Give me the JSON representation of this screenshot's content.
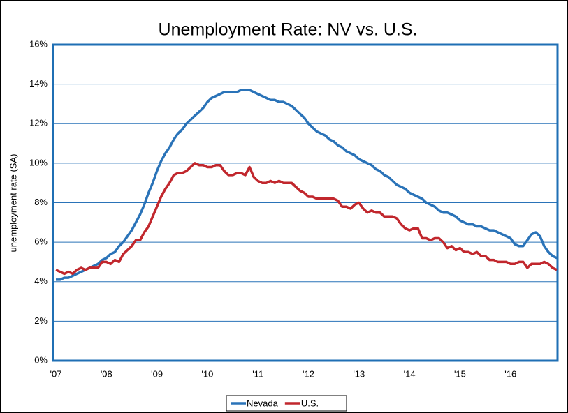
{
  "chart_data": {
    "type": "line",
    "title": "Unemployment Rate: NV vs. U.S.",
    "y_label": "unemployment rate (SA)",
    "categories": [
      "'07",
      null,
      null,
      null,
      null,
      null,
      null,
      null,
      null,
      null,
      null,
      null,
      "'08",
      null,
      null,
      null,
      null,
      null,
      null,
      null,
      null,
      null,
      null,
      null,
      "'09",
      null,
      null,
      null,
      null,
      null,
      null,
      null,
      null,
      null,
      null,
      null,
      "'10",
      null,
      null,
      null,
      null,
      null,
      null,
      null,
      null,
      null,
      null,
      null,
      "'11",
      null,
      null,
      null,
      null,
      null,
      null,
      null,
      null,
      null,
      null,
      null,
      "'12",
      null,
      null,
      null,
      null,
      null,
      null,
      null,
      null,
      null,
      null,
      null,
      "'13",
      null,
      null,
      null,
      null,
      null,
      null,
      null,
      null,
      null,
      null,
      null,
      "'14",
      null,
      null,
      null,
      null,
      null,
      null,
      null,
      null,
      null,
      null,
      null,
      "'15",
      null,
      null,
      null,
      null,
      null,
      null,
      null,
      null,
      null,
      null,
      null,
      "'16",
      null,
      null,
      null,
      null,
      null,
      null,
      null,
      null,
      null,
      null,
      null
    ],
    "series": [
      {
        "name": "Nevada",
        "color": "#2a73b8",
        "values": [
          4.1,
          4.1,
          4.2,
          4.2,
          4.3,
          4.4,
          4.5,
          4.6,
          4.7,
          4.8,
          4.9,
          5.1,
          5.2,
          5.4,
          5.5,
          5.8,
          6.0,
          6.3,
          6.6,
          7.0,
          7.4,
          7.9,
          8.5,
          9.0,
          9.6,
          10.1,
          10.5,
          10.8,
          11.2,
          11.5,
          11.7,
          12.0,
          12.2,
          12.4,
          12.6,
          12.8,
          13.1,
          13.3,
          13.4,
          13.5,
          13.6,
          13.6,
          13.6,
          13.6,
          13.7,
          13.7,
          13.7,
          13.6,
          13.5,
          13.4,
          13.3,
          13.2,
          13.2,
          13.1,
          13.1,
          13.0,
          12.9,
          12.7,
          12.5,
          12.3,
          12.0,
          11.8,
          11.6,
          11.5,
          11.4,
          11.2,
          11.1,
          10.9,
          10.8,
          10.6,
          10.5,
          10.4,
          10.2,
          10.1,
          10.0,
          9.9,
          9.7,
          9.6,
          9.4,
          9.3,
          9.1,
          8.9,
          8.8,
          8.7,
          8.5,
          8.4,
          8.3,
          8.2,
          8.0,
          7.9,
          7.8,
          7.6,
          7.5,
          7.5,
          7.4,
          7.3,
          7.1,
          7.0,
          6.9,
          6.9,
          6.8,
          6.8,
          6.7,
          6.6,
          6.6,
          6.5,
          6.4,
          6.3,
          6.2,
          5.9,
          5.8,
          5.8,
          6.1,
          6.4,
          6.5,
          6.3,
          5.8,
          5.5,
          5.3,
          5.2
        ]
      },
      {
        "name": "U.S.",
        "color": "#c1272d",
        "values": [
          4.6,
          4.5,
          4.4,
          4.5,
          4.4,
          4.6,
          4.7,
          4.6,
          4.7,
          4.7,
          4.7,
          5.0,
          5.0,
          4.9,
          5.1,
          5.0,
          5.4,
          5.6,
          5.8,
          6.1,
          6.1,
          6.5,
          6.8,
          7.3,
          7.8,
          8.3,
          8.7,
          9.0,
          9.4,
          9.5,
          9.5,
          9.6,
          9.8,
          10.0,
          9.9,
          9.9,
          9.8,
          9.8,
          9.9,
          9.9,
          9.6,
          9.4,
          9.4,
          9.5,
          9.5,
          9.4,
          9.8,
          9.3,
          9.1,
          9.0,
          9.0,
          9.1,
          9.0,
          9.1,
          9.0,
          9.0,
          9.0,
          8.8,
          8.6,
          8.5,
          8.3,
          8.3,
          8.2,
          8.2,
          8.2,
          8.2,
          8.2,
          8.1,
          7.8,
          7.8,
          7.7,
          7.9,
          8.0,
          7.7,
          7.5,
          7.6,
          7.5,
          7.5,
          7.3,
          7.3,
          7.3,
          7.2,
          6.9,
          6.7,
          6.6,
          6.7,
          6.7,
          6.2,
          6.2,
          6.1,
          6.2,
          6.2,
          6.0,
          5.7,
          5.8,
          5.6,
          5.7,
          5.5,
          5.5,
          5.4,
          5.5,
          5.3,
          5.3,
          5.1,
          5.1,
          5.0,
          5.0,
          5.0,
          4.9,
          4.9,
          5.0,
          5.0,
          4.7,
          4.9,
          4.9,
          4.9,
          5.0,
          4.9,
          4.7,
          4.6
        ]
      }
    ],
    "ylim": [
      0,
      16
    ],
    "yticks": [
      {
        "value": 0,
        "label": "0%"
      },
      {
        "value": 2,
        "label": "2%"
      },
      {
        "value": 4,
        "label": "4%"
      },
      {
        "value": 6,
        "label": "6%"
      },
      {
        "value": 8,
        "label": "8%"
      },
      {
        "value": 10,
        "label": "10%"
      },
      {
        "value": 12,
        "label": "12%"
      },
      {
        "value": 14,
        "label": "14%"
      },
      {
        "value": 16,
        "label": "16%"
      }
    ],
    "grid": true,
    "legend": "bottom"
  }
}
